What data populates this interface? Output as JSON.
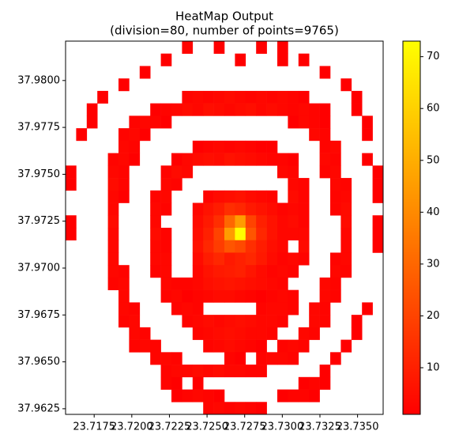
{
  "chart_data": {
    "type": "heatmap",
    "title": "HeatMap Output",
    "subtitle": "(division=80, number of points=9765)",
    "xlim": [
      23.7156,
      23.7367
    ],
    "ylim": [
      37.9622,
      37.9821
    ],
    "xticks": [
      23.7175,
      {
        "value": 23.72,
        "label": "23.7200"
      },
      23.7225,
      {
        "value": 23.725,
        "label": "23.7250"
      },
      23.7275,
      {
        "value": 23.73,
        "label": "23.7300"
      },
      23.7325,
      {
        "value": 23.735,
        "label": "23.7350"
      }
    ],
    "yticks": [
      37.9625,
      {
        "value": 37.965,
        "label": "37.9650"
      },
      37.9675,
      {
        "value": 37.97,
        "label": "37.9700"
      },
      37.9725,
      {
        "value": 37.975,
        "label": "37.9750"
      },
      37.9775,
      {
        "value": 37.98,
        "label": "37.9800"
      }
    ],
    "zlim": [
      1,
      73
    ],
    "zticks": [
      10,
      20,
      30,
      40,
      50,
      60,
      70
    ],
    "colormap": [
      "#ff0000",
      "#ffff00"
    ],
    "z": [
      [
        0,
        0,
        0,
        0,
        0,
        0,
        0,
        0,
        0,
        0,
        0,
        2,
        0,
        0,
        1,
        0,
        0,
        0,
        1,
        0,
        1,
        0,
        0,
        0,
        0,
        0,
        0,
        0,
        0,
        0
      ],
      [
        0,
        0,
        0,
        0,
        0,
        0,
        0,
        0,
        0,
        1,
        0,
        0,
        0,
        0,
        0,
        0,
        1,
        0,
        0,
        0,
        1,
        0,
        1,
        0,
        0,
        0,
        0,
        0,
        0,
        0
      ],
      [
        0,
        0,
        0,
        0,
        0,
        0,
        0,
        1,
        0,
        0,
        0,
        0,
        0,
        0,
        0,
        0,
        0,
        0,
        0,
        0,
        0,
        0,
        0,
        0,
        1,
        0,
        0,
        0,
        0,
        0
      ],
      [
        0,
        0,
        0,
        0,
        0,
        1,
        0,
        0,
        0,
        0,
        0,
        0,
        0,
        0,
        0,
        0,
        0,
        0,
        0,
        0,
        0,
        0,
        0,
        0,
        0,
        0,
        1,
        0,
        0,
        0
      ],
      [
        0,
        0,
        0,
        1,
        0,
        0,
        0,
        0,
        0,
        0,
        0,
        2,
        3,
        2,
        3,
        4,
        3,
        2,
        3,
        2,
        3,
        2,
        1,
        0,
        0,
        0,
        0,
        1,
        0,
        0
      ],
      [
        0,
        0,
        1,
        0,
        0,
        0,
        0,
        0,
        1,
        2,
        3,
        4,
        3,
        5,
        4,
        3,
        4,
        5,
        3,
        4,
        3,
        2,
        3,
        2,
        1,
        0,
        0,
        1,
        0,
        0
      ],
      [
        0,
        0,
        1,
        0,
        0,
        0,
        2,
        3,
        2,
        1,
        0,
        0,
        0,
        0,
        0,
        0,
        0,
        0,
        0,
        0,
        0,
        1,
        3,
        2,
        1,
        0,
        0,
        0,
        1,
        0
      ],
      [
        0,
        1,
        0,
        0,
        0,
        2,
        3,
        1,
        0,
        0,
        0,
        0,
        0,
        0,
        0,
        0,
        0,
        0,
        0,
        0,
        0,
        0,
        0,
        3,
        2,
        0,
        0,
        0,
        1,
        0
      ],
      [
        0,
        0,
        0,
        0,
        0,
        3,
        2,
        0,
        0,
        0,
        0,
        0,
        1,
        2,
        3,
        2,
        3,
        2,
        1,
        1,
        0,
        0,
        0,
        0,
        2,
        3,
        0,
        0,
        0,
        0
      ],
      [
        0,
        0,
        0,
        0,
        2,
        3,
        1,
        0,
        0,
        0,
        1,
        3,
        4,
        5,
        4,
        6,
        5,
        4,
        3,
        2,
        2,
        1,
        0,
        0,
        3,
        2,
        0,
        0,
        1,
        0
      ],
      [
        1,
        0,
        0,
        0,
        3,
        2,
        0,
        0,
        0,
        2,
        4,
        3,
        0,
        0,
        0,
        0,
        0,
        0,
        0,
        0,
        3,
        2,
        0,
        0,
        2,
        3,
        0,
        0,
        0,
        1
      ],
      [
        1,
        0,
        0,
        0,
        4,
        2,
        0,
        0,
        0,
        3,
        2,
        0,
        0,
        0,
        0,
        0,
        0,
        0,
        0,
        0,
        0,
        3,
        2,
        0,
        0,
        3,
        2,
        0,
        0,
        1
      ],
      [
        0,
        0,
        0,
        0,
        3,
        1,
        0,
        0,
        2,
        3,
        0,
        0,
        0,
        2,
        4,
        5,
        6,
        4,
        3,
        2,
        0,
        4,
        2,
        0,
        0,
        2,
        3,
        0,
        0,
        1
      ],
      [
        0,
        0,
        0,
        0,
        3,
        0,
        0,
        0,
        3,
        2,
        0,
        0,
        3,
        6,
        9,
        14,
        12,
        8,
        6,
        4,
        2,
        3,
        2,
        0,
        0,
        2,
        4,
        0,
        0,
        0
      ],
      [
        1,
        0,
        0,
        0,
        4,
        0,
        0,
        0,
        3,
        0,
        0,
        0,
        4,
        8,
        14,
        30,
        45,
        20,
        10,
        6,
        3,
        4,
        2,
        0,
        0,
        0,
        4,
        0,
        0,
        1
      ],
      [
        1,
        0,
        0,
        0,
        3,
        0,
        0,
        0,
        4,
        2,
        0,
        0,
        5,
        10,
        20,
        45,
        73,
        25,
        12,
        6,
        3,
        3,
        3,
        0,
        0,
        0,
        3,
        0,
        0,
        1
      ],
      [
        0,
        0,
        0,
        0,
        3,
        0,
        0,
        0,
        3,
        2,
        0,
        0,
        6,
        12,
        18,
        25,
        22,
        14,
        9,
        5,
        3,
        0,
        4,
        0,
        0,
        0,
        3,
        0,
        0,
        1
      ],
      [
        0,
        0,
        0,
        0,
        3,
        0,
        0,
        0,
        3,
        3,
        0,
        0,
        4,
        9,
        12,
        8,
        10,
        12,
        8,
        4,
        2,
        3,
        2,
        0,
        0,
        2,
        3,
        0,
        0,
        0
      ],
      [
        0,
        0,
        0,
        0,
        3,
        2,
        0,
        0,
        2,
        3,
        0,
        0,
        3,
        6,
        8,
        9,
        10,
        7,
        4,
        2,
        3,
        2,
        0,
        0,
        0,
        3,
        2,
        0,
        0,
        0
      ],
      [
        0,
        0,
        0,
        0,
        2,
        3,
        0,
        0,
        0,
        3,
        2,
        2,
        3,
        5,
        6,
        7,
        6,
        5,
        4,
        3,
        2,
        0,
        0,
        0,
        3,
        2,
        0,
        0,
        0,
        0
      ],
      [
        0,
        0,
        0,
        0,
        0,
        3,
        0,
        0,
        0,
        2,
        3,
        1,
        2,
        3,
        4,
        4,
        3,
        2,
        1,
        2,
        3,
        2,
        0,
        0,
        3,
        2,
        0,
        0,
        0,
        0
      ],
      [
        0,
        0,
        0,
        0,
        0,
        3,
        2,
        0,
        0,
        0,
        2,
        3,
        2,
        0,
        0,
        0,
        0,
        0,
        2,
        3,
        3,
        2,
        0,
        3,
        2,
        0,
        0,
        0,
        1,
        0
      ],
      [
        0,
        0,
        0,
        0,
        0,
        2,
        3,
        0,
        0,
        0,
        0,
        2,
        3,
        4,
        3,
        4,
        5,
        4,
        3,
        3,
        2,
        0,
        0,
        3,
        2,
        0,
        0,
        1,
        0,
        0
      ],
      [
        0,
        0,
        0,
        0,
        0,
        0,
        3,
        2,
        0,
        0,
        0,
        0,
        2,
        3,
        4,
        5,
        4,
        3,
        3,
        2,
        0,
        0,
        3,
        2,
        0,
        0,
        0,
        1,
        0,
        0
      ],
      [
        0,
        0,
        0,
        0,
        0,
        0,
        2,
        3,
        2,
        0,
        0,
        0,
        0,
        2,
        3,
        4,
        3,
        2,
        1,
        0,
        2,
        3,
        2,
        0,
        0,
        0,
        1,
        0,
        0,
        0
      ],
      [
        0,
        0,
        0,
        0,
        0,
        0,
        0,
        0,
        2,
        3,
        2,
        0,
        0,
        0,
        0,
        2,
        1,
        0,
        2,
        3,
        3,
        2,
        0,
        0,
        0,
        1,
        0,
        0,
        0,
        0
      ],
      [
        0,
        0,
        0,
        0,
        0,
        0,
        0,
        0,
        0,
        2,
        3,
        3,
        4,
        3,
        4,
        3,
        3,
        2,
        2,
        0,
        0,
        0,
        0,
        0,
        1,
        0,
        0,
        0,
        0,
        0
      ],
      [
        0,
        0,
        0,
        0,
        0,
        0,
        0,
        0,
        0,
        2,
        1,
        0,
        1,
        0,
        0,
        0,
        0,
        0,
        0,
        0,
        0,
        0,
        1,
        2,
        1,
        0,
        0,
        0,
        0,
        0
      ],
      [
        0,
        0,
        0,
        0,
        0,
        0,
        0,
        0,
        0,
        0,
        1,
        2,
        3,
        2,
        1,
        0,
        0,
        0,
        0,
        0,
        1,
        2,
        2,
        1,
        0,
        0,
        0,
        0,
        0,
        0
      ],
      [
        0,
        0,
        0,
        0,
        0,
        0,
        0,
        0,
        0,
        0,
        0,
        0,
        0,
        2,
        3,
        2,
        3,
        2,
        1,
        0,
        0,
        0,
        0,
        0,
        0,
        0,
        0,
        0,
        0,
        0
      ]
    ]
  }
}
